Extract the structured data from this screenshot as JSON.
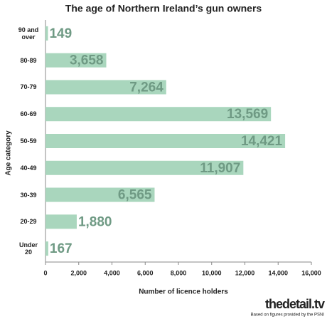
{
  "chart_data": {
    "type": "bar",
    "orientation": "horizontal",
    "title": "The age of Northern Ireland’s gun owners",
    "x_label": "Number of licence holders",
    "y_label": "Age category",
    "categories": [
      "90 and over",
      "80-89",
      "70-79",
      "60-69",
      "50-59",
      "40-49",
      "30-39",
      "20-29",
      "Under 20"
    ],
    "values": [
      149,
      3658,
      7264,
      13569,
      14421,
      11907,
      6565,
      1880,
      167
    ],
    "value_labels": [
      "149",
      "3,658",
      "7,264",
      "13,569",
      "14,421",
      "11,907",
      "6,565",
      "1,880",
      "167"
    ],
    "color": "#a9d6bd",
    "label_color": "#6f9a84",
    "xlim": [
      0,
      16000
    ],
    "xticks": [
      0,
      {
        "value": 2000,
        "label": "2,000"
      },
      {
        "value": 4000,
        "label": "4,000"
      },
      {
        "value": 6000,
        "label": "6,000"
      },
      {
        "value": 8000,
        "label": "8,000"
      },
      {
        "value": 10000,
        "label": "10,000"
      },
      {
        "value": 12000,
        "label": "12,000"
      },
      {
        "value": 14000,
        "label": "14,000"
      },
      {
        "value": 16000,
        "label": "16,000"
      }
    ],
    "grid": false
  },
  "footer": {
    "logo": "thedetail.tv",
    "note": "Based on figures provided by the PSNI"
  }
}
